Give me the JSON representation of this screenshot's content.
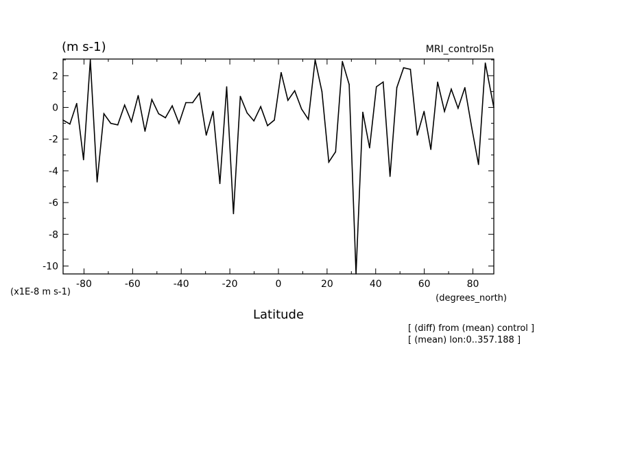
{
  "header": {
    "units": "(m s-1)",
    "model": "MRI_control5n"
  },
  "axes": {
    "y_scale_note": "(x1E-8 m s-1)",
    "x_units": "(degrees_north)",
    "xlabel": "Latitude"
  },
  "notes": [
    "[ (diff) from (mean) control ]",
    "[ (mean) lon:0..357.188 ]"
  ],
  "colors": {
    "line": "#000000",
    "background": "#ffffff"
  },
  "chart_data": {
    "type": "line",
    "title": "",
    "xlabel": "Latitude",
    "ylabel": "(m s-1)",
    "xlim": [
      -88.6,
      88.6
    ],
    "ylim": [
      -10.5,
      3.05
    ],
    "grid": false,
    "x_ticks": [
      -80,
      -60,
      -40,
      -20,
      0,
      20,
      40,
      60,
      80
    ],
    "x_tick_labels": [
      "-80",
      "-60",
      "-40",
      "-20",
      "0",
      "20",
      "40",
      "60",
      "80"
    ],
    "y_ticks": [
      2,
      0,
      -2,
      -4,
      -6,
      -8,
      -10
    ],
    "y_tick_labels": [
      "2",
      "0",
      "-2",
      "-4",
      "-6",
      "-8",
      "-10"
    ],
    "series": [
      {
        "x": [
          -88.6,
          -85.8,
          -83.0,
          -80.2,
          -77.4,
          -74.6,
          -71.8,
          -69.0,
          -66.1,
          -63.3,
          -60.5,
          -57.7,
          -54.9,
          -52.1,
          -49.3,
          -46.5,
          -43.7,
          -40.9,
          -38.1,
          -35.3,
          -32.5,
          -29.7,
          -26.9,
          -24.1,
          -21.3,
          -18.5,
          -15.7,
          -12.9,
          -10.1,
          -7.3,
          -4.5,
          -1.7,
          1.1,
          3.9,
          6.7,
          9.5,
          12.3,
          15.1,
          17.9,
          20.7,
          23.5,
          26.3,
          29.1,
          31.9,
          34.7,
          37.5,
          40.3,
          43.1,
          45.9,
          48.7,
          51.5,
          54.3,
          57.1,
          59.9,
          62.7,
          65.5,
          68.3,
          71.1,
          73.9,
          76.7,
          79.5,
          82.3,
          85.1,
          88.6
        ],
        "values": [
          -0.8,
          -1.05,
          0.25,
          -3.3,
          3.0,
          -4.7,
          -0.4,
          -1.0,
          -1.1,
          0.15,
          -0.9,
          0.75,
          -1.5,
          0.5,
          -0.4,
          -0.65,
          0.1,
          -1.0,
          0.3,
          0.3,
          0.9,
          -1.75,
          -0.25,
          -4.8,
          1.3,
          -6.7,
          0.7,
          -0.35,
          -0.85,
          0.05,
          -1.15,
          -0.8,
          2.2,
          0.45,
          1.05,
          -0.1,
          -0.75,
          3.0,
          1.0,
          -3.45,
          -2.8,
          2.9,
          1.45,
          -10.5,
          -0.3,
          -2.55,
          1.3,
          1.6,
          -4.35,
          1.25,
          2.5,
          2.4,
          -1.75,
          -0.25,
          -2.65,
          1.6,
          -0.25,
          1.15,
          -0.05,
          1.25,
          -1.25,
          -3.6,
          2.8,
          0.0
        ]
      }
    ]
  }
}
